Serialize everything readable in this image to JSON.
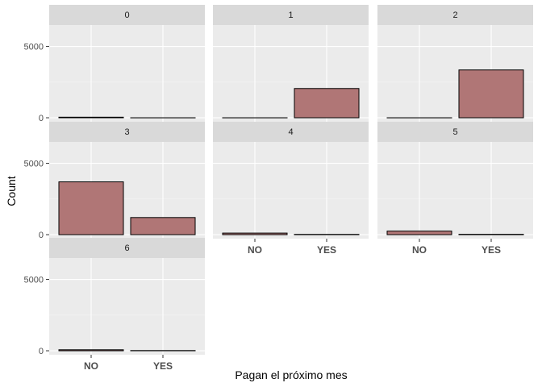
{
  "chart_data": {
    "type": "bar",
    "xlabel": "Pagan el próximo mes",
    "ylabel": "Count",
    "categories": [
      "NO",
      "YES"
    ],
    "y_ticks": [
      0,
      5000
    ],
    "ylim": [
      -280,
      6500
    ],
    "facets": [
      {
        "label": "0",
        "values": [
          40,
          0
        ]
      },
      {
        "label": "1",
        "values": [
          0,
          2050
        ]
      },
      {
        "label": "2",
        "values": [
          0,
          3350
        ]
      },
      {
        "label": "3",
        "values": [
          3700,
          1200
        ]
      },
      {
        "label": "4",
        "values": [
          110,
          20
        ]
      },
      {
        "label": "5",
        "values": [
          250,
          25
        ]
      },
      {
        "label": "6",
        "values": [
          70,
          15
        ]
      }
    ],
    "grid": true,
    "legend": "none",
    "bar_fill": "#b07676",
    "bar_stroke": "#000000",
    "panel_bg": "#ebebeb",
    "strip_bg": "#d9d9d9"
  }
}
